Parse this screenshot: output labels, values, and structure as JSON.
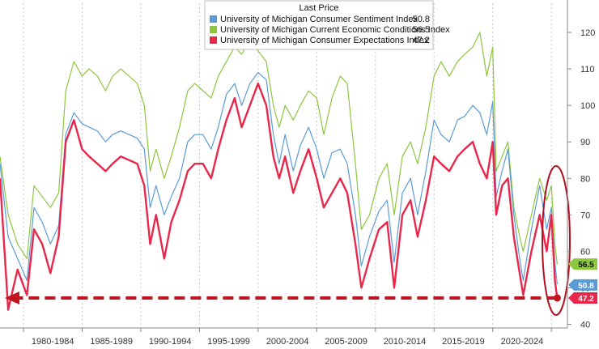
{
  "chart_data": {
    "type": "line",
    "legend": {
      "title": "Last Price",
      "placement": "top-center"
    },
    "x_ticks": [
      "1980-1984",
      "1985-1989",
      "1990-1994",
      "1995-1999",
      "2000-2004",
      "2005-2009",
      "2010-2014",
      "2015-2019",
      "2020-2024"
    ],
    "y_ticks": [
      "40",
      "50",
      "60",
      "70",
      "80",
      "90",
      "100",
      "110",
      "120"
    ],
    "ylim": [
      39,
      128
    ],
    "xlim": [
      1978.0,
      2026.3
    ],
    "series": [
      {
        "name": "University of Michigan Consumer Sentiment Index",
        "last": "50.8",
        "color": "#5b9bd5",
        "x": [
          1978.0,
          1978.7,
          1979.5,
          1980.3,
          1980.9,
          1981.6,
          1982.3,
          1983.0,
          1983.6,
          1984.3,
          1985.0,
          1985.6,
          1986.3,
          1987.0,
          1987.6,
          1988.3,
          1989.0,
          1989.7,
          1990.3,
          1990.8,
          1991.3,
          1992.0,
          1992.6,
          1993.3,
          1994.0,
          1994.6,
          1995.3,
          1996.0,
          1996.6,
          1997.3,
          1998.0,
          1998.6,
          1999.3,
          2000.0,
          2000.7,
          2001.3,
          2001.8,
          2002.3,
          2003.0,
          2003.6,
          2004.3,
          2005.0,
          2005.6,
          2006.3,
          2007.0,
          2007.6,
          2008.3,
          2008.8,
          2009.5,
          2010.3,
          2011.0,
          2011.6,
          2012.3,
          2013.0,
          2013.6,
          2014.3,
          2015.0,
          2015.6,
          2016.3,
          2017.0,
          2017.6,
          2018.3,
          2018.9,
          2019.5,
          2020.0,
          2020.3,
          2020.8,
          2021.3,
          2021.8,
          2022.3,
          2022.6,
          2023.3,
          2024.0,
          2024.6,
          2025.0,
          2025.3,
          2025.5
        ],
        "values": [
          84,
          64,
          58,
          52,
          72,
          68,
          62,
          67,
          92,
          98,
          95,
          94,
          93,
          90,
          92,
          93,
          92,
          91,
          88,
          72,
          78,
          70,
          75,
          80,
          90,
          92,
          92,
          88,
          94,
          103,
          106,
          100,
          106,
          109,
          107,
          92,
          84,
          92,
          82,
          89,
          94,
          88,
          80,
          87,
          88,
          84,
          70,
          56,
          64,
          71,
          74,
          57,
          76,
          80,
          70,
          82,
          96,
          92,
          90,
          96,
          97,
          100,
          98,
          92,
          101,
          75,
          82,
          88,
          70,
          58,
          52,
          66,
          78,
          66,
          72,
          57,
          51
        ]
      },
      {
        "name": "University of Michigan Current Economic Conditions Index",
        "last": "56.5",
        "color": "#8dc63f",
        "x": [
          1978.0,
          1978.7,
          1979.5,
          1980.3,
          1980.9,
          1981.6,
          1982.3,
          1983.0,
          1983.6,
          1984.3,
          1985.0,
          1985.6,
          1986.3,
          1987.0,
          1987.6,
          1988.3,
          1989.0,
          1989.7,
          1990.3,
          1990.8,
          1991.3,
          1992.0,
          1992.6,
          1993.3,
          1994.0,
          1994.6,
          1995.3,
          1996.0,
          1996.6,
          1997.3,
          1998.0,
          1998.6,
          1999.3,
          2000.0,
          2000.7,
          2001.3,
          2001.8,
          2002.3,
          2003.0,
          2003.6,
          2004.3,
          2005.0,
          2005.6,
          2006.3,
          2007.0,
          2007.6,
          2008.3,
          2008.8,
          2009.5,
          2010.3,
          2011.0,
          2011.6,
          2012.3,
          2013.0,
          2013.6,
          2014.3,
          2015.0,
          2015.6,
          2016.3,
          2017.0,
          2017.6,
          2018.3,
          2018.9,
          2019.5,
          2020.0,
          2020.3,
          2020.8,
          2021.3,
          2021.8,
          2022.3,
          2022.6,
          2023.3,
          2024.0,
          2024.6,
          2025.0,
          2025.3,
          2025.5
        ],
        "values": [
          86,
          70,
          62,
          58,
          78,
          75,
          72,
          76,
          104,
          112,
          108,
          110,
          108,
          104,
          108,
          110,
          108,
          106,
          100,
          82,
          88,
          80,
          86,
          94,
          104,
          106,
          104,
          102,
          108,
          112,
          116,
          114,
          118,
          115,
          112,
          100,
          94,
          100,
          96,
          100,
          104,
          102,
          92,
          102,
          108,
          106,
          84,
          66,
          70,
          80,
          84,
          70,
          86,
          90,
          84,
          94,
          108,
          112,
          108,
          112,
          114,
          116,
          120,
          108,
          116,
          82,
          86,
          90,
          72,
          64,
          60,
          70,
          80,
          74,
          78,
          62,
          56.5
        ]
      },
      {
        "name": "University of Michigan Consumer Expectations Index",
        "last": "47.2",
        "color": "#e8274b",
        "x": [
          1978.0,
          1978.7,
          1979.5,
          1980.3,
          1980.9,
          1981.6,
          1982.3,
          1983.0,
          1983.6,
          1984.3,
          1985.0,
          1985.6,
          1986.3,
          1987.0,
          1987.6,
          1988.3,
          1989.0,
          1989.7,
          1990.3,
          1990.8,
          1991.3,
          1992.0,
          1992.6,
          1993.3,
          1994.0,
          1994.6,
          1995.3,
          1996.0,
          1996.6,
          1997.3,
          1998.0,
          1998.6,
          1999.3,
          2000.0,
          2000.7,
          2001.3,
          2001.8,
          2002.3,
          2003.0,
          2003.6,
          2004.3,
          2005.0,
          2005.6,
          2006.3,
          2007.0,
          2007.6,
          2008.3,
          2008.8,
          2009.5,
          2010.3,
          2011.0,
          2011.6,
          2012.3,
          2013.0,
          2013.6,
          2014.3,
          2015.0,
          2015.6,
          2016.3,
          2017.0,
          2017.6,
          2018.3,
          2018.9,
          2019.5,
          2020.0,
          2020.3,
          2020.8,
          2021.3,
          2021.8,
          2022.3,
          2022.6,
          2023.3,
          2024.0,
          2024.6,
          2025.0,
          2025.3,
          2025.5
        ],
        "values": [
          80,
          44,
          55,
          48,
          66,
          62,
          54,
          64,
          90,
          96,
          88,
          86,
          84,
          82,
          84,
          86,
          85,
          84,
          78,
          62,
          70,
          58,
          68,
          74,
          82,
          84,
          84,
          80,
          88,
          96,
          102,
          94,
          100,
          106,
          100,
          86,
          80,
          86,
          76,
          82,
          88,
          80,
          72,
          76,
          80,
          76,
          62,
          50,
          58,
          66,
          68,
          50,
          70,
          74,
          64,
          74,
          86,
          84,
          82,
          86,
          88,
          90,
          84,
          80,
          90,
          70,
          78,
          80,
          64,
          54,
          48,
          60,
          70,
          60,
          70,
          52,
          47.2
        ]
      }
    ],
    "annotations": {
      "reference_level": 47.2,
      "reference_note": "dashed arrow pointing left at the latest expectations level",
      "highlight": "red ellipse around the latest readings"
    }
  }
}
